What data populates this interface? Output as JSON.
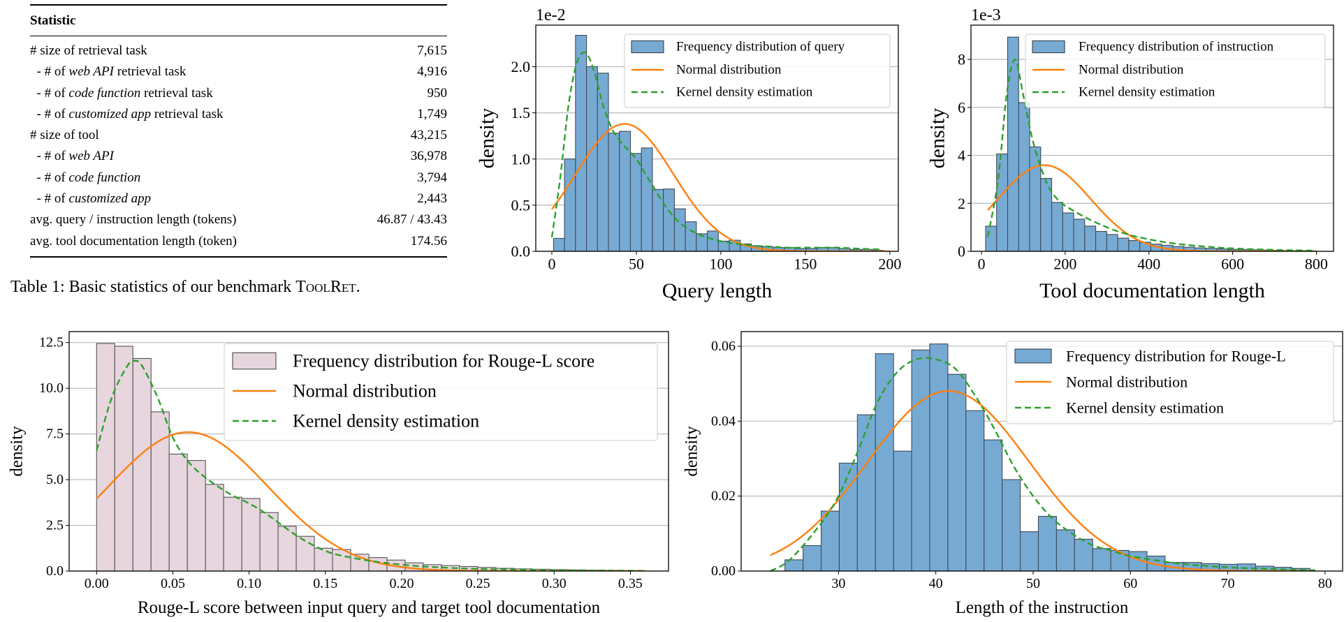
{
  "table": {
    "header": "Statistic",
    "rows": [
      {
        "prefix": "# size of retrieval task",
        "em": "",
        "suffix": "",
        "value": "7,615"
      },
      {
        "prefix": "  - # of ",
        "em": "web API",
        "suffix": " retrieval task",
        "value": "4,916"
      },
      {
        "prefix": "  - # of ",
        "em": "code function",
        "suffix": " retrieval task",
        "value": "950"
      },
      {
        "prefix": "  - # of ",
        "em": "customized app",
        "suffix": " retrieval task",
        "value": "1,749"
      },
      {
        "prefix": "# size of tool",
        "em": "",
        "suffix": "",
        "value": "43,215"
      },
      {
        "prefix": "  - # of ",
        "em": "web API",
        "suffix": "",
        "value": "36,978"
      },
      {
        "prefix": "  - # of ",
        "em": "code function",
        "suffix": "",
        "value": "3,794"
      },
      {
        "prefix": "  - # of ",
        "em": "customized app",
        "suffix": "",
        "value": "2,443"
      },
      {
        "prefix": "avg. query / instruction length (tokens)",
        "em": "",
        "suffix": "",
        "value": "46.87 / 43.43"
      },
      {
        "prefix": "avg. tool documentation length (token)",
        "em": "",
        "suffix": "",
        "value": "174.56"
      }
    ],
    "caption_prefix": "Table 1: Basic statistics of our benchmark ",
    "caption_name": "ToolRet",
    "caption_suffix": "."
  },
  "colors": {
    "bar_blue": "#77aad3",
    "bar_edge": "#3c4a58",
    "bar_pink": "#e7d6de",
    "bar_pink_edge": "#555555",
    "normal": "#ff7f0e",
    "kde": "#2ca02c",
    "grid": "#b9b9b9"
  },
  "chart_data": [
    {
      "type": "bar",
      "subtype": "histogram",
      "xlabel": "Query length",
      "ylabel": "density",
      "y_multiplier": "1e-2",
      "xlim": [
        -9.5,
        205
      ],
      "ylim": [
        0,
        2.45
      ],
      "xticks": [
        0,
        50,
        100,
        150,
        200
      ],
      "xtick_labels": [
        "0",
        "50",
        "100",
        "150",
        "200"
      ],
      "yticks": [
        0,
        0.5,
        1.0,
        1.5,
        2.0
      ],
      "ytick_labels": [
        "0.0",
        "0.5",
        "1.0",
        "1.5",
        "2.0"
      ],
      "grid": "horizontal",
      "legend_placement": "top-right",
      "bins": {
        "start": 1,
        "width": 6.5
      },
      "values": [
        0.14,
        1.0,
        2.34,
        2.0,
        1.93,
        1.28,
        1.3,
        1.06,
        1.12,
        0.67,
        0.675,
        0.46,
        0.32,
        0.19,
        0.22,
        0.11,
        0.12,
        0.08,
        0.06,
        0.05,
        0.04,
        0.04,
        0.03,
        0.03,
        0.04,
        0.04,
        0.03,
        0.02,
        0.02,
        0.01
      ],
      "normal": {
        "mean": 43,
        "sd": 28.9,
        "range": [
          0,
          200
        ]
      },
      "kde": [
        [
          0,
          0.15
        ],
        [
          5,
          0.8
        ],
        [
          10,
          1.6
        ],
        [
          15,
          2.05
        ],
        [
          20,
          2.15
        ],
        [
          25,
          1.95
        ],
        [
          30,
          1.6
        ],
        [
          35,
          1.35
        ],
        [
          40,
          1.2
        ],
        [
          45,
          1.1
        ],
        [
          50,
          1.0
        ],
        [
          55,
          0.85
        ],
        [
          60,
          0.7
        ],
        [
          65,
          0.55
        ],
        [
          70,
          0.42
        ],
        [
          75,
          0.32
        ],
        [
          80,
          0.25
        ],
        [
          85,
          0.2
        ],
        [
          90,
          0.16
        ],
        [
          100,
          0.11
        ],
        [
          110,
          0.08
        ],
        [
          120,
          0.06
        ],
        [
          130,
          0.05
        ],
        [
          140,
          0.04
        ],
        [
          150,
          0.04
        ],
        [
          160,
          0.04
        ],
        [
          170,
          0.04
        ],
        [
          180,
          0.03
        ],
        [
          195,
          0.02
        ]
      ],
      "legend": [
        "Frequency distribution of query",
        "Normal distribution",
        "Kernel density estimation"
      ],
      "bar_color": "#77aad3"
    },
    {
      "type": "bar",
      "subtype": "histogram",
      "xlabel": "Tool documentation length",
      "ylabel": "density",
      "y_multiplier": "1e-3",
      "xlim": [
        -25,
        841
      ],
      "ylim": [
        0,
        9.43
      ],
      "xticks": [
        0,
        200,
        400,
        600,
        800
      ],
      "xtick_labels": [
        "0",
        "200",
        "400",
        "600",
        "800"
      ],
      "yticks": [
        0,
        2,
        4,
        6,
        8
      ],
      "ytick_labels": [
        "0",
        "2",
        "4",
        "6",
        "8"
      ],
      "grid": "horizontal",
      "legend_placement": "top-right",
      "bins": {
        "start": 10,
        "width": 26.3
      },
      "values": [
        1.05,
        4.06,
        8.93,
        6.2,
        4.35,
        3.04,
        2.04,
        1.6,
        1.34,
        1.05,
        0.83,
        0.7,
        0.55,
        0.45,
        0.38,
        0.3,
        0.25,
        0.2,
        0.17,
        0.14,
        0.12,
        0.1,
        0.08,
        0.07,
        0.06,
        0.05,
        0.04,
        0.03,
        0.03,
        0.02
      ],
      "normal": {
        "mean": 150,
        "sd": 111,
        "range": [
          15,
          800
        ]
      },
      "kde": [
        [
          15,
          0.6
        ],
        [
          40,
          3.0
        ],
        [
          60,
          6.5
        ],
        [
          80,
          8.0
        ],
        [
          100,
          6.5
        ],
        [
          120,
          4.8
        ],
        [
          140,
          3.6
        ],
        [
          160,
          2.7
        ],
        [
          180,
          2.2
        ],
        [
          200,
          1.9
        ],
        [
          250,
          1.4
        ],
        [
          300,
          1.0
        ],
        [
          350,
          0.7
        ],
        [
          400,
          0.5
        ],
        [
          450,
          0.35
        ],
        [
          500,
          0.25
        ],
        [
          550,
          0.18
        ],
        [
          600,
          0.12
        ],
        [
          700,
          0.06
        ],
        [
          790,
          0.03
        ]
      ],
      "legend": [
        "Frequency distribution of instruction",
        "Normal distribution",
        "Kernel density estimation"
      ],
      "bar_color": "#77aad3"
    },
    {
      "type": "bar",
      "subtype": "histogram",
      "xlabel": "Rouge-L score between input query and target tool documentation",
      "ylabel": "density",
      "y_multiplier": "",
      "xlim": [
        -0.018,
        0.375
      ],
      "ylim": [
        0,
        13.1
      ],
      "xticks": [
        0,
        0.05,
        0.1,
        0.15,
        0.2,
        0.25,
        0.3,
        0.35
      ],
      "xtick_labels": [
        "0.00",
        "0.05",
        "0.10",
        "0.15",
        "0.20",
        "0.25",
        "0.30",
        "0.35"
      ],
      "yticks": [
        0,
        2.5,
        5.0,
        7.5,
        10.0,
        12.5
      ],
      "ytick_labels": [
        "0.0",
        "2.5",
        "5.0",
        "7.5",
        "10.0",
        "12.5"
      ],
      "grid": "horizontal",
      "legend_placement": "top-right",
      "bins": {
        "start": 0,
        "width": 0.0119
      },
      "values": [
        12.45,
        12.3,
        11.63,
        8.71,
        6.4,
        6.05,
        4.74,
        4.04,
        3.97,
        3.2,
        2.45,
        1.9,
        1.25,
        1.18,
        0.92,
        0.74,
        0.6,
        0.45,
        0.35,
        0.3,
        0.25,
        0.2,
        0.15,
        0.12,
        0.1,
        0.08,
        0.06,
        0.05,
        0.04,
        0.03
      ],
      "normal": {
        "mean": 0.06,
        "sd": 0.0525,
        "range": [
          0,
          0.36
        ]
      },
      "kde": [
        [
          0,
          6.6
        ],
        [
          0.01,
          9.5
        ],
        [
          0.02,
          11.2
        ],
        [
          0.025,
          11.5
        ],
        [
          0.03,
          11.2
        ],
        [
          0.04,
          9.5
        ],
        [
          0.05,
          7.3
        ],
        [
          0.06,
          6.0
        ],
        [
          0.07,
          5.2
        ],
        [
          0.08,
          4.6
        ],
        [
          0.09,
          4.1
        ],
        [
          0.1,
          3.7
        ],
        [
          0.11,
          3.2
        ],
        [
          0.12,
          2.6
        ],
        [
          0.13,
          2.0
        ],
        [
          0.14,
          1.5
        ],
        [
          0.15,
          1.1
        ],
        [
          0.16,
          0.85
        ],
        [
          0.18,
          0.55
        ],
        [
          0.2,
          0.35
        ],
        [
          0.22,
          0.22
        ],
        [
          0.25,
          0.12
        ],
        [
          0.3,
          0.05
        ],
        [
          0.36,
          0.01
        ]
      ],
      "legend": [
        "Frequency distribution for Rouge-L score",
        "Normal distribution",
        "Kernel density estimation"
      ],
      "bar_color": "#e7d6de"
    },
    {
      "type": "bar",
      "subtype": "histogram",
      "xlabel": "Length of the instruction",
      "ylabel": "density",
      "y_multiplier": "",
      "xlim": [
        20,
        81.8
      ],
      "ylim": [
        0,
        0.0639
      ],
      "xticks": [
        30,
        40,
        50,
        60,
        70,
        80
      ],
      "xtick_labels": [
        "30",
        "40",
        "50",
        "60",
        "70",
        "80"
      ],
      "yticks": [
        0,
        0.02,
        0.04,
        0.06
      ],
      "ytick_labels": [
        "0.00",
        "0.02",
        "0.04",
        "0.06"
      ],
      "grid": "horizontal",
      "legend_placement": "top-right",
      "bins": {
        "start": 24.5,
        "width": 1.86
      },
      "values": [
        0.003,
        0.0068,
        0.016,
        0.0288,
        0.0417,
        0.058,
        0.032,
        0.059,
        0.0606,
        0.0525,
        0.0428,
        0.035,
        0.0244,
        0.0105,
        0.0146,
        0.011,
        0.0085,
        0.006,
        0.0055,
        0.0052,
        0.004,
        0.0023,
        0.0023,
        0.002,
        0.0018,
        0.0019,
        0.0013,
        0.001,
        0.0007
      ],
      "normal": {
        "mean": 41.3,
        "sd": 8.3,
        "range": [
          23,
          79
        ]
      },
      "kde": [
        [
          23,
          0.0
        ],
        [
          25,
          0.003
        ],
        [
          28,
          0.012
        ],
        [
          30,
          0.02
        ],
        [
          32,
          0.032
        ],
        [
          34,
          0.045
        ],
        [
          36,
          0.053
        ],
        [
          38,
          0.0565
        ],
        [
          40,
          0.0565
        ],
        [
          42,
          0.054
        ],
        [
          44,
          0.047
        ],
        [
          46,
          0.038
        ],
        [
          48,
          0.028
        ],
        [
          50,
          0.02
        ],
        [
          52,
          0.014
        ],
        [
          54,
          0.01
        ],
        [
          56,
          0.007
        ],
        [
          58,
          0.0055
        ],
        [
          60,
          0.004
        ],
        [
          65,
          0.002
        ],
        [
          70,
          0.001
        ],
        [
          75,
          0.0005
        ],
        [
          79,
          0.0002
        ]
      ],
      "legend": [
        "Frequency distribution for Rouge-L",
        "Normal distribution",
        "Kernel density estimation"
      ],
      "bar_color": "#77aad3"
    }
  ]
}
